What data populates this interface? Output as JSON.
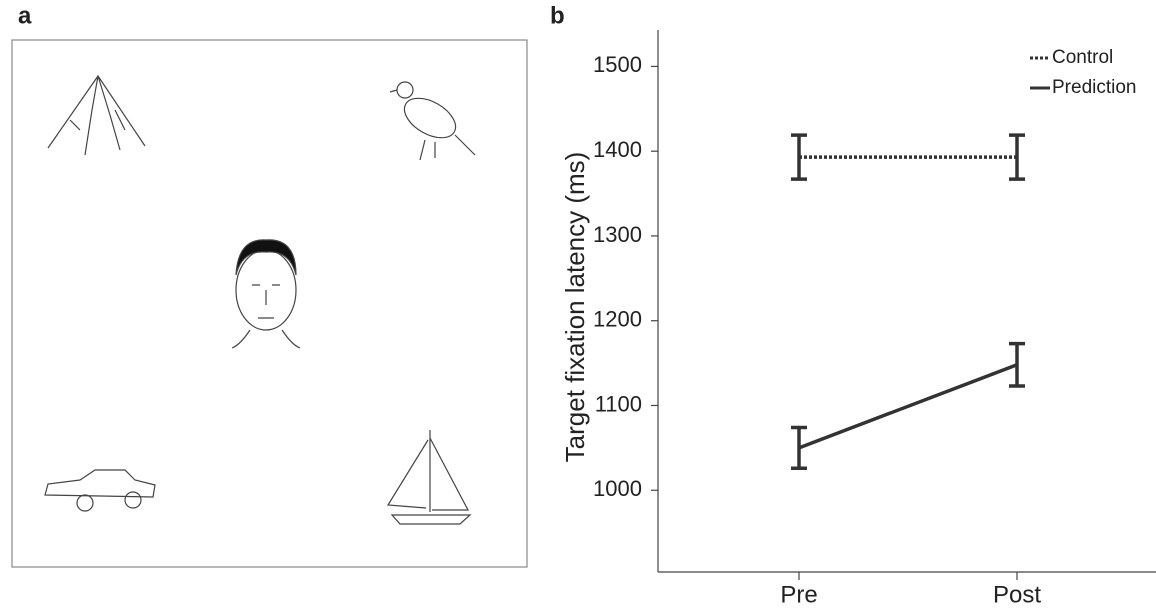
{
  "panel_labels": [
    "a",
    "b"
  ],
  "chart_data": {
    "type": "line",
    "y_label": "Target fixation latency (ms)",
    "categories": [
      "Pre",
      "Post"
    ],
    "series": [
      {
        "name": "Control",
        "color": "#333333",
        "dash": "dotted",
        "values": [
          1393,
          1393
        ],
        "errors": [
          26,
          26
        ]
      },
      {
        "name": "Prediction",
        "color": "#333333",
        "dash": "solid",
        "values": [
          1050,
          1148
        ],
        "errors": [
          24,
          25
        ]
      }
    ],
    "ylim": [
      900,
      1530
    ],
    "yticks": [
      1000,
      1100,
      1200,
      1300,
      1400,
      1500
    ],
    "legend": "top-right",
    "grid": false
  }
}
